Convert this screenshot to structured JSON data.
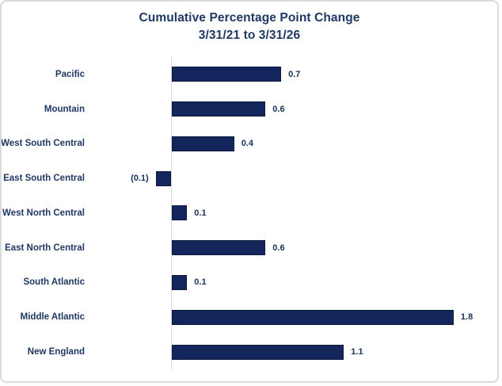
{
  "window": {
    "background": "#ffffff",
    "border_color": "#d8dadc"
  },
  "chart_data": {
    "type": "bar",
    "orientation": "horizontal",
    "title": "Cumulative Percentage Point Change",
    "subtitle": "3/31/21 to 3/31/26",
    "categories": [
      "Pacific",
      "Mountain",
      "West South Central",
      "East South Central",
      "West North Central",
      "East North Central",
      "South Atlantic",
      "Middle Atlantic",
      "New England"
    ],
    "values": [
      0.7,
      0.6,
      0.4,
      -0.1,
      0.1,
      0.6,
      0.1,
      1.8,
      1.1
    ],
    "data_labels": [
      "0.7",
      "0.6",
      "0.4",
      "(0.1)",
      "0.1",
      "0.6",
      "0.1",
      "1.8",
      "1.1"
    ],
    "xlim": [
      -0.55,
      2.1
    ],
    "xlabel": "",
    "ylabel": "",
    "legend": "none",
    "grid": "off",
    "bar_color": "#13265B",
    "bar_border_color": "#0D1B3E",
    "title_color": "#1F3864",
    "category_label_color": "#1F3864",
    "value_label_color": "#17325F",
    "axis_line_color": "#d9d9d9"
  }
}
